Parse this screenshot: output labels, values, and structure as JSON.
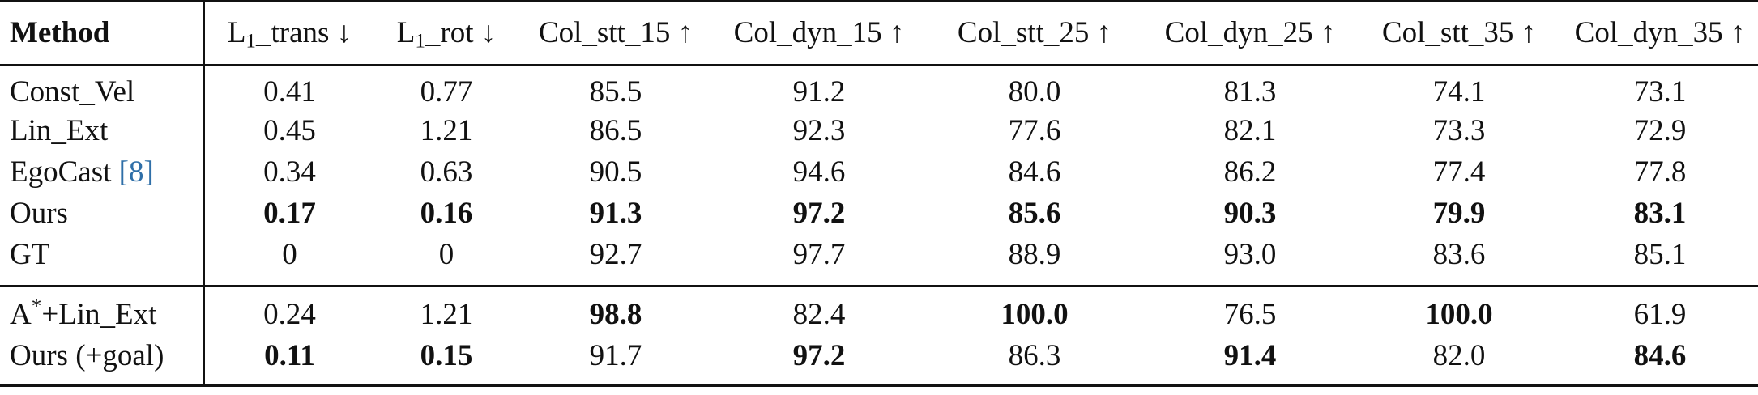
{
  "header": {
    "method": "Method",
    "cols": [
      {
        "pre": "L",
        "sub": "1",
        "post": "_trans ↓"
      },
      {
        "pre": "L",
        "sub": "1",
        "post": "_rot ↓"
      },
      {
        "pre": "Col_stt_15 ↑",
        "sub": "",
        "post": ""
      },
      {
        "pre": "Col_dyn_15 ↑",
        "sub": "",
        "post": ""
      },
      {
        "pre": "Col_stt_25 ↑",
        "sub": "",
        "post": ""
      },
      {
        "pre": "Col_dyn_25 ↑",
        "sub": "",
        "post": ""
      },
      {
        "pre": "Col_stt_35 ↑",
        "sub": "",
        "post": ""
      },
      {
        "pre": "Col_dyn_35 ↑",
        "sub": "",
        "post": ""
      }
    ]
  },
  "rows_group1": [
    {
      "method": "Const_Vel",
      "cite": "",
      "values": [
        "0.41",
        "0.77",
        "85.5",
        "91.2",
        "80.0",
        "81.3",
        "74.1",
        "73.1"
      ],
      "bold": [
        false,
        false,
        false,
        false,
        false,
        false,
        false,
        false
      ]
    },
    {
      "method": "Lin_Ext",
      "cite": "",
      "values": [
        "0.45",
        "1.21",
        "86.5",
        "92.3",
        "77.6",
        "82.1",
        "73.3",
        "72.9"
      ],
      "bold": [
        false,
        false,
        false,
        false,
        false,
        false,
        false,
        false
      ]
    },
    {
      "method": "EgoCast ",
      "cite": "[8]",
      "values": [
        "0.34",
        "0.63",
        "90.5",
        "94.6",
        "84.6",
        "86.2",
        "77.4",
        "77.8"
      ],
      "bold": [
        false,
        false,
        false,
        false,
        false,
        false,
        false,
        false
      ]
    },
    {
      "method": "Ours",
      "cite": "",
      "values": [
        "0.17",
        "0.16",
        "91.3",
        "97.2",
        "85.6",
        "90.3",
        "79.9",
        "83.1"
      ],
      "bold": [
        true,
        true,
        true,
        true,
        true,
        true,
        true,
        true
      ]
    },
    {
      "method": "GT",
      "cite": "",
      "values": [
        "0",
        "0",
        "92.7",
        "97.7",
        "88.9",
        "93.0",
        "83.6",
        "85.1"
      ],
      "bold": [
        false,
        false,
        false,
        false,
        false,
        false,
        false,
        false
      ]
    }
  ],
  "rows_group2": [
    {
      "method_pre": "A",
      "method_sup": "*",
      "method_post": "+Lin_Ext",
      "values": [
        "0.24",
        "1.21",
        "98.8",
        "82.4",
        "100.0",
        "76.5",
        "100.0",
        "61.9"
      ],
      "bold": [
        false,
        false,
        true,
        false,
        true,
        false,
        true,
        false
      ]
    },
    {
      "method_pre": "Ours (+goal)",
      "method_sup": "",
      "method_post": "",
      "values": [
        "0.11",
        "0.15",
        "91.7",
        "97.2",
        "86.3",
        "91.4",
        "82.0",
        "84.6"
      ],
      "bold": [
        true,
        true,
        false,
        true,
        false,
        true,
        false,
        true
      ]
    }
  ]
}
